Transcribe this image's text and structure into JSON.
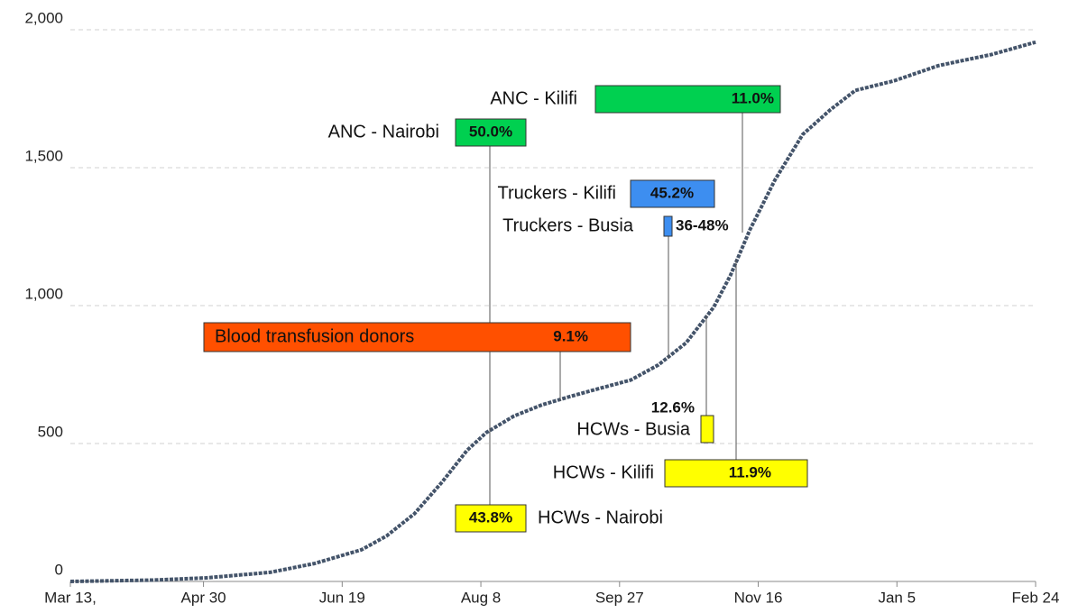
{
  "chart_data": {
    "type": "line",
    "series": [
      {
        "color": "#44546a",
        "x": [
          0,
          30,
          49,
          72,
          88,
          105,
          114,
          124,
          134,
          143,
          150,
          160,
          170,
          180,
          189,
          202,
          212,
          222,
          232,
          238,
          245,
          254,
          264,
          274,
          283,
          297,
          313,
          332,
          348
        ],
        "values": [
          0,
          5,
          13,
          33,
          65,
          115,
          165,
          245,
          360,
          475,
          540,
          600,
          640,
          670,
          695,
          730,
          785,
          865,
          995,
          1110,
          1275,
          1455,
          1620,
          1710,
          1780,
          1815,
          1870,
          1910,
          1955
        ]
      }
    ],
    "xlim": [
      0,
      348
    ],
    "xticks": [
      {
        "value": 0,
        "label": "Mar 13,"
      },
      {
        "value": 48,
        "label": "Apr 30"
      },
      {
        "value": 98,
        "label": "Jun 19"
      },
      {
        "value": 148,
        "label": "Aug 8"
      },
      {
        "value": 198,
        "label": "Sep 27"
      },
      {
        "value": 248,
        "label": "Nov 16"
      },
      {
        "value": 298,
        "label": "Jan 5"
      },
      {
        "value": 348,
        "label": "Feb 24"
      }
    ],
    "ylim": [
      0,
      2000
    ],
    "yticks": [
      0,
      {
        "value": 500,
        "label": "500"
      },
      {
        "value": 1000,
        "label": "1,000"
      },
      {
        "value": 1500,
        "label": "1,500"
      },
      {
        "value": 2000,
        "label": "2,000"
      }
    ],
    "grid": true,
    "annotations": [
      {
        "label": "ANC - Kilifi",
        "percent": "11.0%",
        "color": "#00d050"
      },
      {
        "label": "ANC - Nairobi",
        "percent": "50.0%",
        "color": "#00d050"
      },
      {
        "label": "Truckers - Kilifi",
        "percent": "45.2%",
        "color": "#3d8ef0"
      },
      {
        "label": "Truckers - Busia",
        "percent": "36-48%",
        "color": "#3d8ef0"
      },
      {
        "label": "Blood transfusion donors",
        "percent": "9.1%",
        "color": "#ff5000"
      },
      {
        "label": "HCWs - Busia",
        "percent": "12.6%",
        "color": "#ffff00"
      },
      {
        "label": "HCWs - Kilifi",
        "percent": "11.9%",
        "color": "#ffff00"
      },
      {
        "label": "HCWs - Nairobi",
        "percent": "43.8%",
        "color": "#ffff00"
      }
    ]
  }
}
